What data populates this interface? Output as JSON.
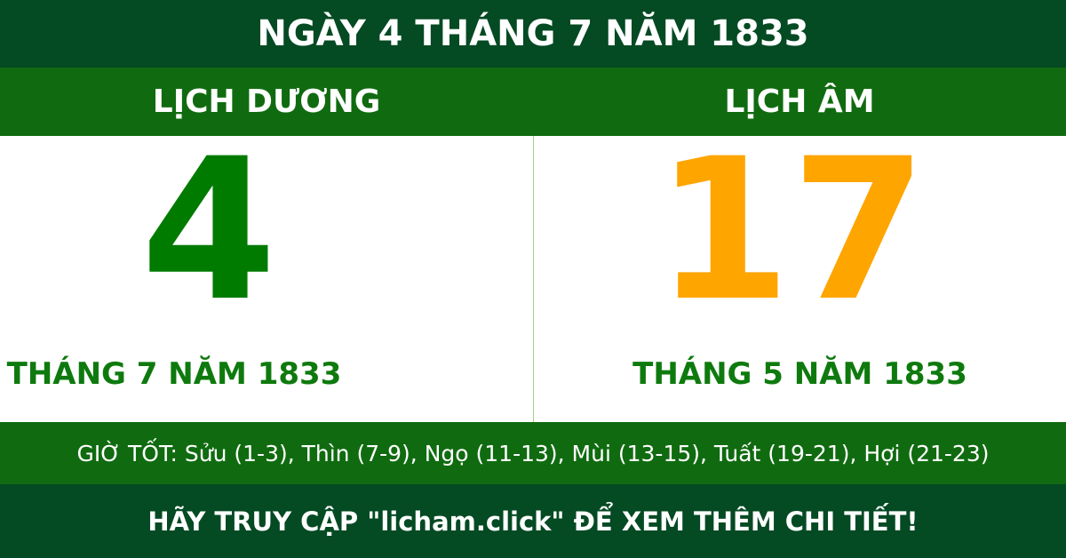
{
  "title": "NGÀY 4 THÁNG 7 NĂM 1833",
  "solar": {
    "label": "LỊCH DƯƠNG",
    "day": "4",
    "month_year": "THÁNG 7 NĂM 1833"
  },
  "lunar": {
    "label": "LỊCH ÂM",
    "day": "17",
    "month_year": "THÁNG 5 NĂM 1833"
  },
  "good_hours": "GIỜ TỐT: Sửu (1-3), Thìn (7-9), Ngọ (11-13), Mùi (13-15), Tuất (19-21), Hợi (21-23)",
  "footer": "HÃY TRUY CẬP \"licham.click\" ĐỂ XEM THÊM CHI TIẾT!",
  "colors": {
    "dark_green": "#044a23",
    "green": "#106b10",
    "solar_day": "#007b00",
    "lunar_day": "#ffa500"
  }
}
